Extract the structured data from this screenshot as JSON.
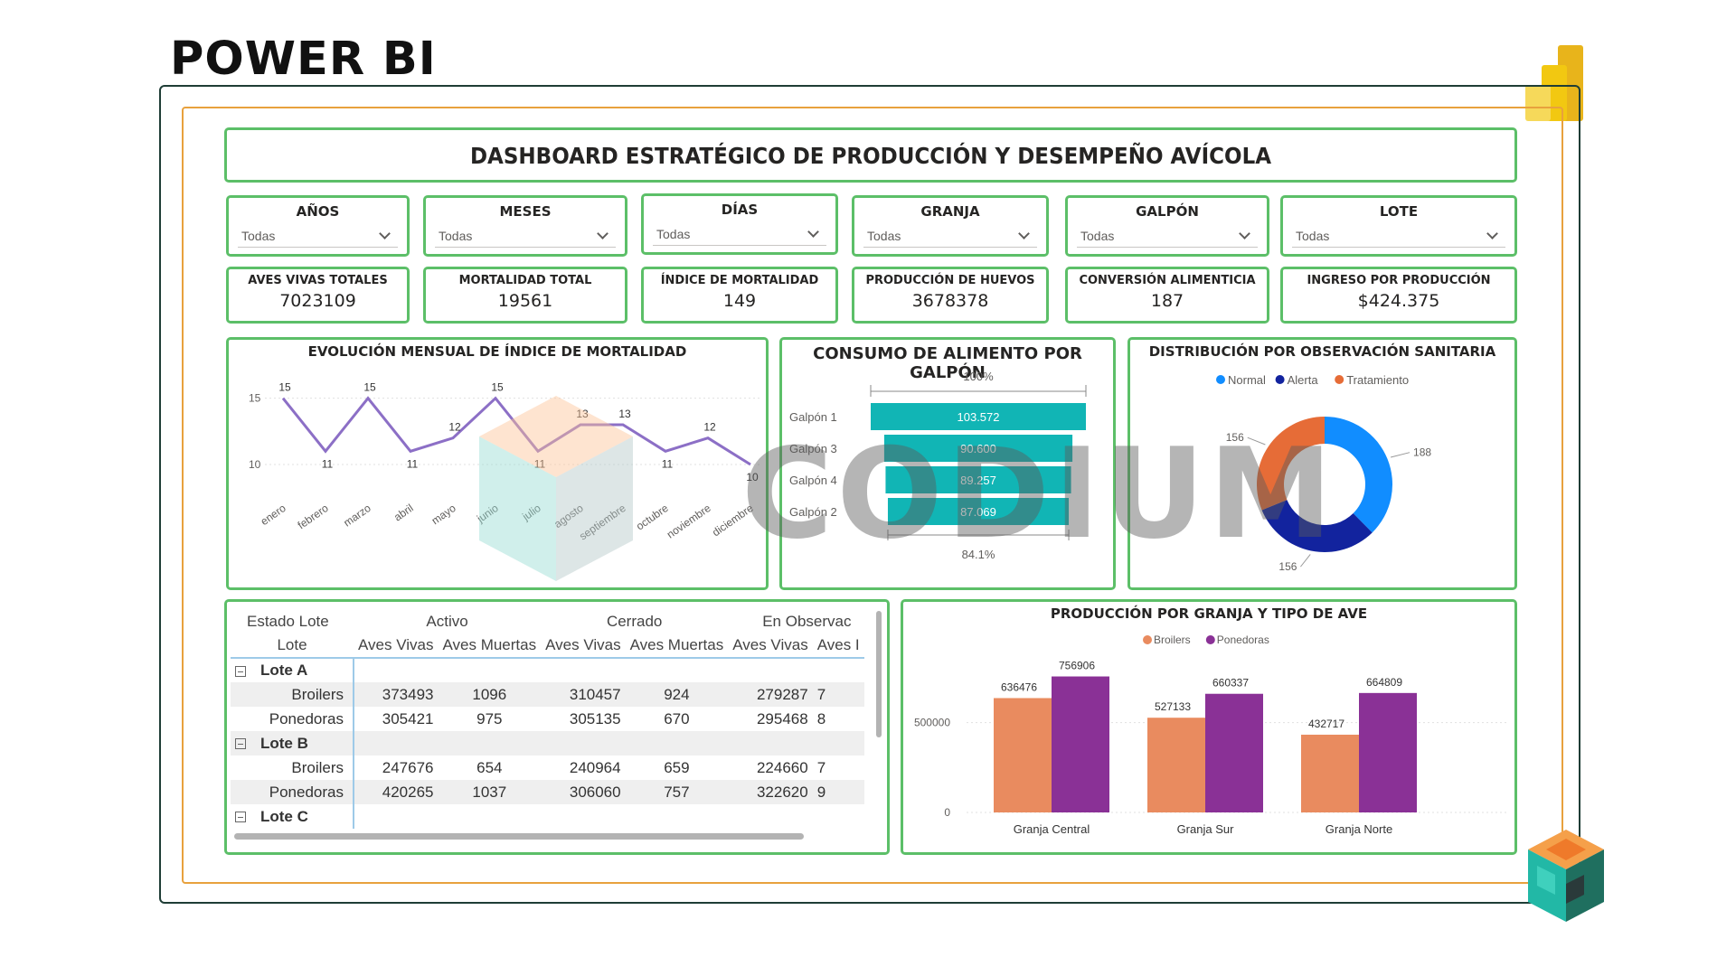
{
  "brand": {
    "title": "POWER BI"
  },
  "dashboard": {
    "title": "DASHBOARD ESTRATÉGICO DE PRODUCCIÓN Y DESEMPEÑO AVÍCOLA"
  },
  "slicers": [
    {
      "label": "AÑOS",
      "value": "Todas"
    },
    {
      "label": "MESES",
      "value": "Todas"
    },
    {
      "label": "DÍAS",
      "value": "Todas"
    },
    {
      "label": "GRANJA",
      "value": "Todas"
    },
    {
      "label": "GALPÓN",
      "value": "Todas"
    },
    {
      "label": "LOTE",
      "value": "Todas"
    }
  ],
  "kpis": [
    {
      "label": "AVES VIVAS TOTALES",
      "value": "7023109"
    },
    {
      "label": "MORTALIDAD TOTAL",
      "value": "19561"
    },
    {
      "label": "ÍNDICE DE MORTALIDAD",
      "value": "149"
    },
    {
      "label": "PRODUCCIÓN DE HUEVOS",
      "value": "3678378"
    },
    {
      "label": "CONVERSIÓN ALIMENTICIA",
      "value": "187"
    },
    {
      "label": "INGRESO POR PRODUCCIÓN",
      "value": "$424.375"
    }
  ],
  "line_chart": {
    "title": "EVOLUCIÓN MENSUAL DE ÍNDICE DE MORTALIDAD",
    "color": "#8c6fc6"
  },
  "funnel_chart": {
    "title": "CONSUMO DE ALIMENTO POR GALPÓN",
    "top_label": "100%",
    "bottom_label": "84.1%",
    "color": "#11b5b5"
  },
  "donut_chart": {
    "title": "DISTRIBUCIÓN POR OBSERVACIÓN SANITARIA"
  },
  "bar_chart": {
    "title": "PRODUCCIÓN POR GRANJA Y TIPO DE AVE"
  },
  "chart_data": [
    {
      "type": "line",
      "title": "EVOLUCIÓN MENSUAL DE ÍNDICE DE MORTALIDAD",
      "categories": [
        "enero",
        "febrero",
        "marzo",
        "abril",
        "mayo",
        "junio",
        "julio",
        "agosto",
        "septiembre",
        "octubre",
        "noviembre",
        "diciembre"
      ],
      "values": [
        15,
        11,
        15,
        11,
        12,
        15,
        11,
        13,
        13,
        11,
        12,
        10
      ],
      "yticks": [
        10,
        15
      ],
      "ylim": [
        8.5,
        16
      ]
    },
    {
      "type": "bar",
      "subtype": "funnel",
      "title": "CONSUMO DE ALIMENTO POR GALPÓN",
      "categories": [
        "Galpón 1",
        "Galpón 3",
        "Galpón 4",
        "Galpón 2"
      ],
      "values": [
        103.572,
        90.6,
        89.257,
        87.069
      ],
      "labels": [
        "103.572",
        "90.600",
        "89.257",
        "87.069"
      ]
    },
    {
      "type": "pie",
      "subtype": "donut",
      "title": "DISTRIBUCIÓN POR OBSERVACIÓN SANITARIA",
      "categories": [
        "Normal",
        "Alerta",
        "Tratamiento"
      ],
      "values": [
        188,
        156,
        156
      ],
      "colors": [
        "#118dff",
        "#12239e",
        "#e66c37"
      ],
      "legend": "top"
    },
    {
      "type": "bar",
      "title": "PRODUCCIÓN POR GRANJA Y TIPO DE AVE",
      "categories": [
        "Granja Central",
        "Granja Sur",
        "Granja Norte"
      ],
      "series": [
        {
          "name": "Broilers",
          "values": [
            636476,
            527133,
            432717
          ],
          "color": "#e98b5f"
        },
        {
          "name": "Ponedoras",
          "values": [
            756906,
            660337,
            664809
          ],
          "color": "#8a3196"
        }
      ],
      "yticks": [
        0,
        500000
      ],
      "ylim": [
        0,
        830000
      ],
      "legend": "top"
    }
  ],
  "matrix": {
    "header_row1": [
      "Estado Lote",
      "Activo",
      "Cerrado",
      "En Observac"
    ],
    "header_row2": [
      "Lote",
      "Aves Vivas",
      "Aves Muertas",
      "Aves Vivas",
      "Aves Muertas",
      "Aves Vivas",
      "Aves I"
    ],
    "groups": [
      {
        "name": "Lote A",
        "rows": [
          {
            "label": "Broilers",
            "cells": [
              "373493",
              "1096",
              "310457",
              "924",
              "279287",
              "7"
            ]
          },
          {
            "label": "Ponedoras",
            "cells": [
              "305421",
              "975",
              "305135",
              "670",
              "295468",
              "8"
            ]
          }
        ]
      },
      {
        "name": "Lote B",
        "rows": [
          {
            "label": "Broilers",
            "cells": [
              "247676",
              "654",
              "240964",
              "659",
              "224660",
              "7"
            ]
          },
          {
            "label": "Ponedoras",
            "cells": [
              "420265",
              "1037",
              "306060",
              "757",
              "322620",
              "9"
            ]
          }
        ]
      },
      {
        "name": "Lote C",
        "rows": []
      }
    ]
  },
  "watermark": {
    "text": "CODIUM"
  }
}
